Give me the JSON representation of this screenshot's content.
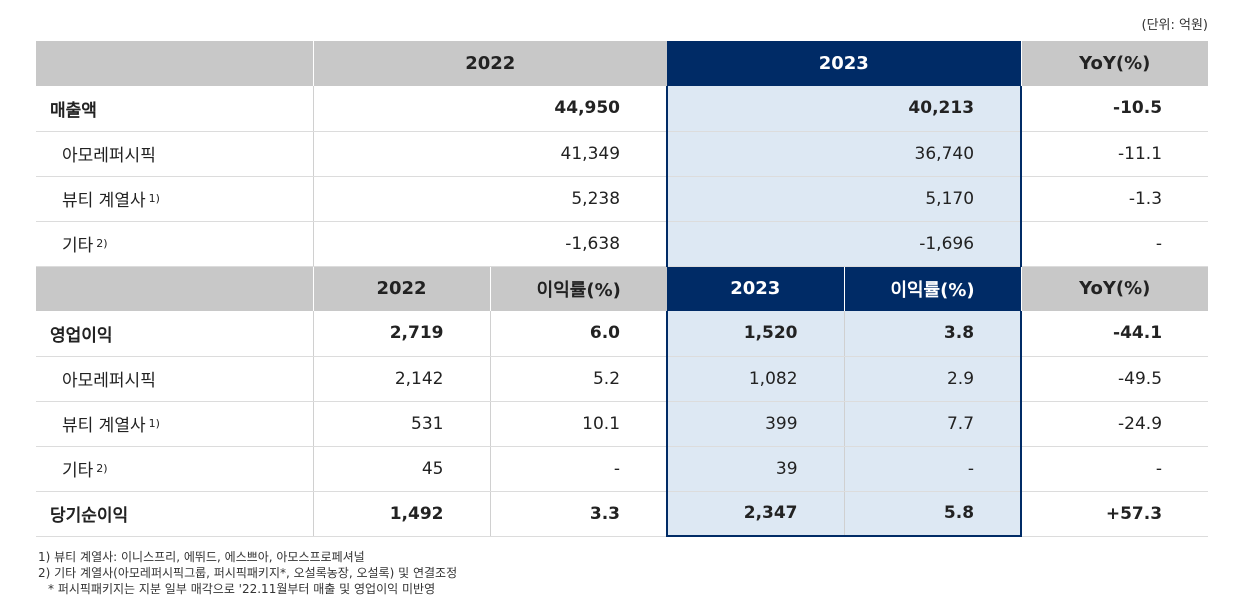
{
  "unit": "(단위: 억원)",
  "revenue_header": {
    "y2022": "2022",
    "y2023": "2023",
    "yoy": "YoY(%)"
  },
  "revenue_rows": [
    {
      "label": "매출액",
      "sup": "",
      "v2022": "44,950",
      "v2023": "40,213",
      "yoy": "-10.5"
    },
    {
      "label": "아모레퍼시픽",
      "sup": "",
      "v2022": "41,349",
      "v2023": "36,740",
      "yoy": "-11.1"
    },
    {
      "label": "뷰티 계열사",
      "sup": "1)",
      "v2022": "5,238",
      "v2023": "5,170",
      "yoy": "-1.3"
    },
    {
      "label": "기타",
      "sup": "2)",
      "v2022": "-1,638",
      "v2023": "-1,696",
      "yoy": "-"
    }
  ],
  "profit_header": {
    "y2022": "2022",
    "m2022": "이익률(%)",
    "y2023": "2023",
    "m2023": "이익률(%)",
    "yoy": "YoY(%)"
  },
  "profit_rows": [
    {
      "label": "영업이익",
      "sup": "",
      "v2022": "2,719",
      "m2022": "6.0",
      "v2023": "1,520",
      "m2023": "3.8",
      "yoy": "-44.1"
    },
    {
      "label": "아모레퍼시픽",
      "sup": "",
      "v2022": "2,142",
      "m2022": "5.2",
      "v2023": "1,082",
      "m2023": "2.9",
      "yoy": "-49.5"
    },
    {
      "label": "뷰티 계열사",
      "sup": "1)",
      "v2022": "531",
      "m2022": "10.1",
      "v2023": "399",
      "m2023": "7.7",
      "yoy": "-24.9"
    },
    {
      "label": "기타",
      "sup": "2)",
      "v2022": "45",
      "m2022": "-",
      "v2023": "39",
      "m2023": "-",
      "yoy": "-"
    },
    {
      "label": "당기순이익",
      "sup": "",
      "v2022": "1,492",
      "m2022": "3.3",
      "v2023": "2,347",
      "m2023": "5.8",
      "yoy": "+57.3"
    }
  ],
  "notes": [
    "1) 뷰티 계열사: 이니스프리, 에뛰드, 에스쁘아, 아모스프로페셔널",
    "2) 기타 계열사(아모레퍼시픽그룹, 퍼시픽패키지*, 오설록농장, 오설록) 및 연결조정",
    "* 퍼시픽패키지는 지분 일부 매각으로 '22.11월부터 매출 및 영업이익 미반영"
  ]
}
